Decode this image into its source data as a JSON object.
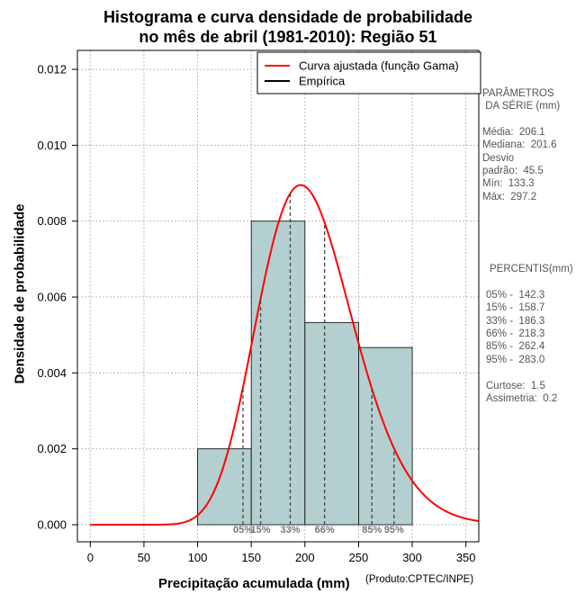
{
  "chart_data": {
    "type": "bar",
    "title": "Histograma e curva densidade de probabilidade",
    "subtitle": "no mês de abril (1981-2010): Região 51",
    "xlabel": "Precipitação acumulada (mm)",
    "ylabel": "Densidade de probabilidade",
    "credit": "(Produto:CPTEC/INPE)",
    "xlim": [
      -12,
      362
    ],
    "ylim": [
      -0.00045,
      0.0125
    ],
    "xticks": [
      0,
      50,
      100,
      150,
      200,
      250,
      300,
      350
    ],
    "yticks": [
      0.0,
      0.002,
      0.004,
      0.006,
      0.008,
      0.01,
      0.012
    ],
    "ytick_labels": [
      "0.000",
      "0.002",
      "0.004",
      "0.006",
      "0.008",
      "0.010",
      "0.012"
    ],
    "grid": true,
    "legend_position": "top-right",
    "legend": [
      {
        "label": "Curva ajustada (função Gama)",
        "color": "#ff0000"
      },
      {
        "label": "Empírica",
        "color": "#000000"
      }
    ],
    "histogram": {
      "color": "#b4cfcf",
      "bins": [
        {
          "x0": 100,
          "x1": 150,
          "density": 0.002
        },
        {
          "x0": 150,
          "x1": 200,
          "density": 0.008
        },
        {
          "x0": 200,
          "x1": 250,
          "density": 0.00533
        },
        {
          "x0": 250,
          "x1": 300,
          "density": 0.00467
        }
      ]
    },
    "gamma_fit": {
      "mean": 206.1,
      "std": 45.5,
      "color": "#ff0000",
      "x_range": [
        0,
        362
      ]
    },
    "percentile_marks": [
      {
        "label": "05%",
        "x": 142.3
      },
      {
        "label": "15%",
        "x": 158.7
      },
      {
        "label": "33%",
        "x": 186.3
      },
      {
        "label": "66%",
        "x": 218.3
      },
      {
        "label": "85%",
        "x": 262.4
      },
      {
        "label": "95%",
        "x": 283.0
      }
    ],
    "stats_panel": {
      "parametros_title_1": "PARÂMETROS",
      "parametros_title_2": " DA SÉRIE (mm)",
      "media": "Média:  206.1",
      "mediana": "Mediana:  201.6",
      "desvio_1": "Desvio",
      "desvio_2": "padrão:  45.5",
      "min": "Mín:  133.3",
      "max": "Máx:  297.2",
      "percentis_title": "PERCENTIS(mm)",
      "p05": "05% -  142.3",
      "p15": "15% -  158.7",
      "p33": "33% -  186.3",
      "p66": "66% -  218.3",
      "p85": "85% -  262.4",
      "p95": "95% -  283.0",
      "curtose": "Curtose:  1.5",
      "assimetria": "Assimetria:  0.2"
    }
  }
}
